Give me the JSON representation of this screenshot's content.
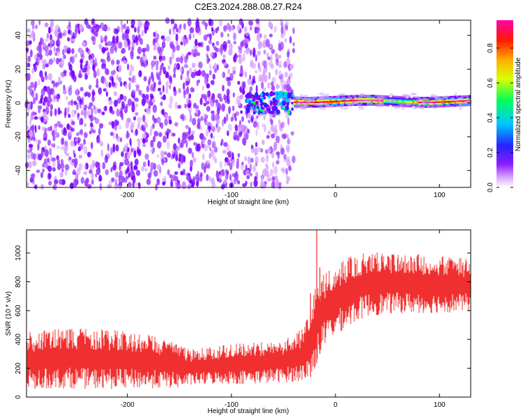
{
  "title": "C2E3.2024.288.08.27.R24",
  "chart_data": [
    {
      "type": "heatmap",
      "xlabel": "Height of straight line (km)",
      "ylabel": "Frequency (Hz)",
      "xlim": [
        -297,
        130
      ],
      "ylim": [
        -50,
        49
      ],
      "x_ticks": [
        -200,
        -100,
        0,
        100
      ],
      "y_ticks": [
        -40,
        -20,
        0,
        20,
        40
      ],
      "colorbar": {
        "label": "Normalized spectral amplitude",
        "range": [
          0.0,
          0.96
        ],
        "ticks": [
          0.0,
          0.2,
          0.4,
          0.6,
          0.8
        ],
        "colormap": [
          "#ffffff",
          "#b24dff",
          "#7a00ff",
          "#3b1dff",
          "#00c8ff",
          "#00ff66",
          "#ffff00",
          "#ff8800",
          "#ff0000",
          "#ff00aa"
        ]
      },
      "regions": [
        {
          "x_from": -297,
          "x_to": -40,
          "pattern": "broadband noise",
          "typical_amplitude": 0.08
        },
        {
          "x_from": -85,
          "x_to": -40,
          "pattern": "transition, energy concentrating near 0 Hz",
          "typical_amplitude": 0.3
        },
        {
          "x_from": -40,
          "x_to": 130,
          "pattern": "narrow band at ~1 Hz",
          "band_center_hz": 1,
          "band_halfwidth_hz": 2,
          "peak_amplitude": 0.95
        }
      ]
    },
    {
      "type": "line",
      "xlabel": "Height of straight line (km)",
      "ylabel": "SNR (10 * v/v)",
      "xlim": [
        -297,
        130
      ],
      "ylim": [
        0,
        1160
      ],
      "x_ticks": [
        -200,
        -100,
        0,
        100
      ],
      "y_ticks": [
        0,
        200,
        400,
        600,
        800,
        1000
      ],
      "color": "#f03030",
      "series": [
        {
          "x": [
            -297,
            -260,
            -220,
            -180,
            -150,
            -140,
            -110,
            -80,
            -50,
            -30,
            -22,
            -15,
            -5,
            10,
            30,
            60,
            90,
            130
          ],
          "y_low": [
            50,
            60,
            55,
            60,
            60,
            80,
            90,
            90,
            100,
            110,
            150,
            300,
            400,
            480,
            560,
            580,
            580,
            590
          ],
          "y_high": [
            450,
            480,
            470,
            440,
            380,
            330,
            360,
            380,
            400,
            480,
            700,
            850,
            880,
            960,
            1020,
            1000,
            990,
            960
          ],
          "y_spikes": [
            [
              -18,
              1160
            ],
            [
              -24,
              720
            ],
            [
              -15,
              900
            ]
          ]
        }
      ]
    }
  ]
}
